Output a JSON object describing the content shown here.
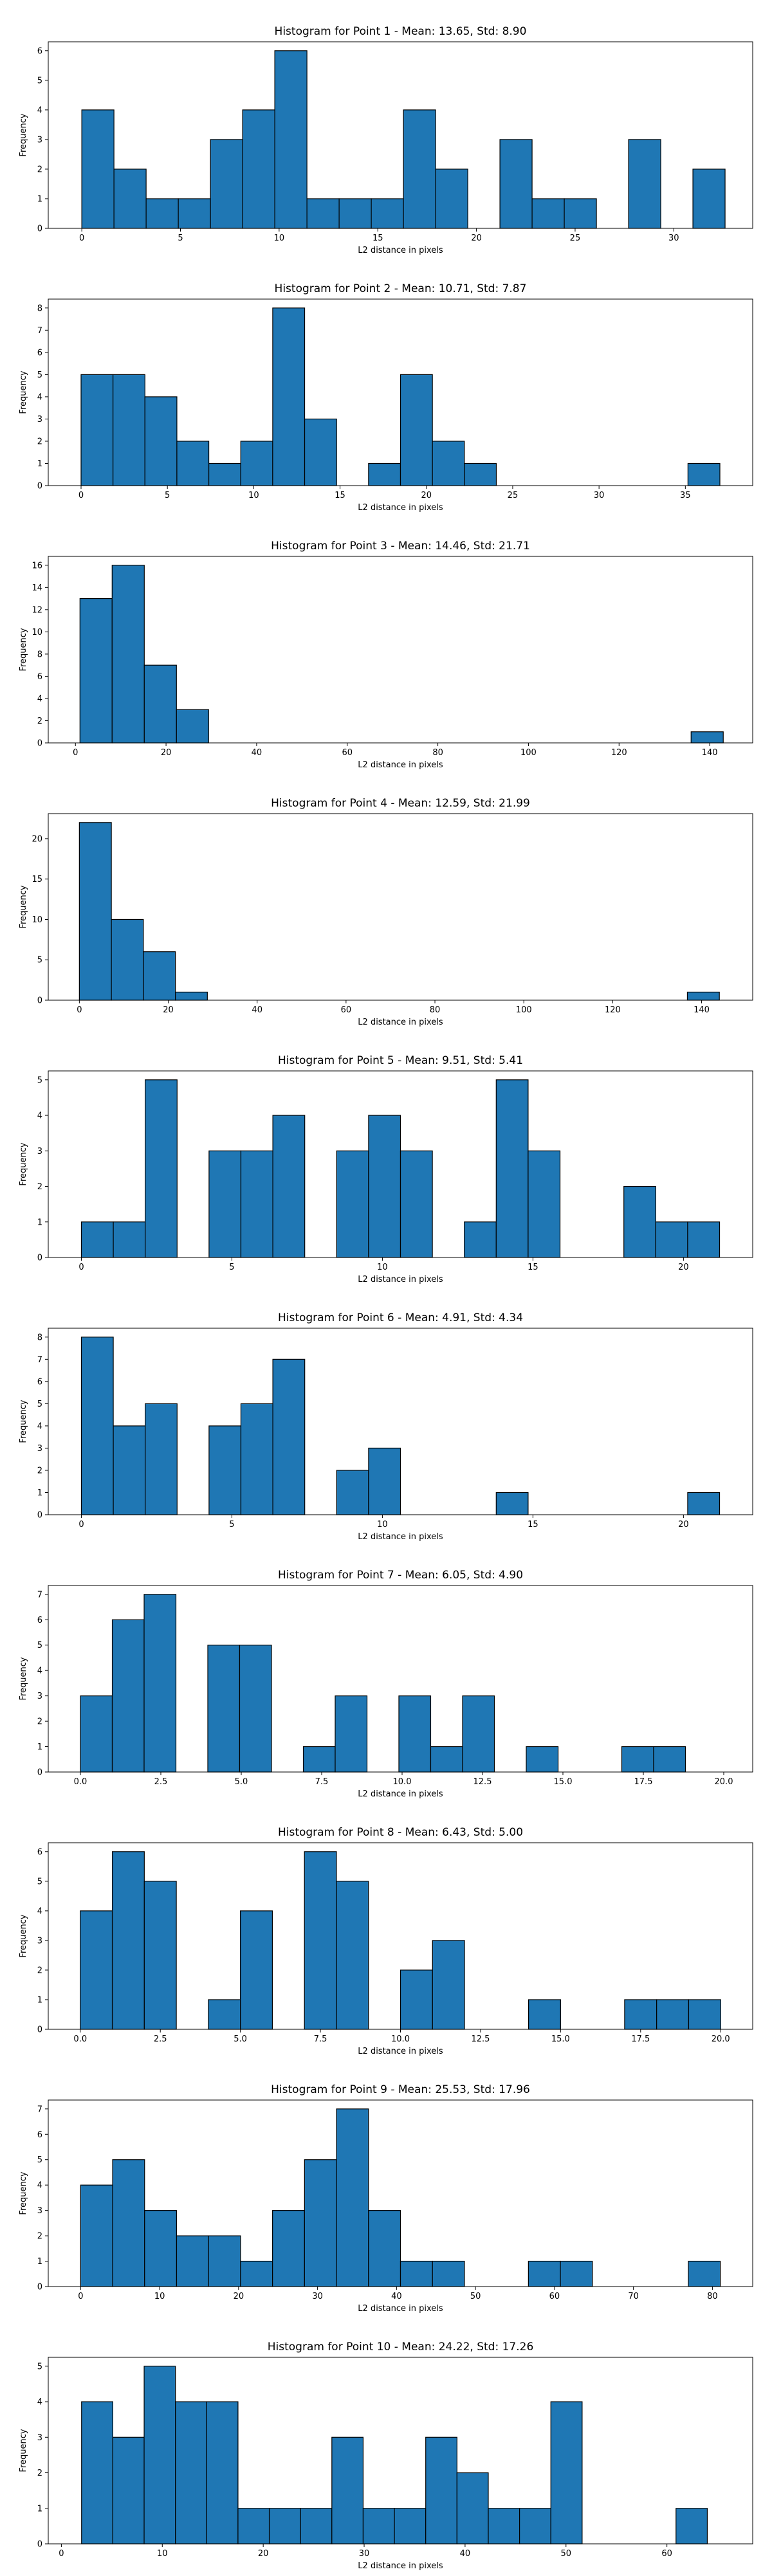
{
  "chart_data": [
    {
      "type": "bar",
      "title": "Histogram for Point 1 - Mean: 13.65, Std: 8.90",
      "xlabel": "L2 distance in pixels",
      "ylabel": "Frequency",
      "xlim": [
        -1.7,
        34.0
      ],
      "ylim": [
        0,
        6.3
      ],
      "xticks": [
        0,
        5,
        10,
        15,
        20,
        25,
        30
      ],
      "xtick_labels": [
        "0",
        "5",
        "10",
        "15",
        "20",
        "25",
        "30"
      ],
      "yticks": [
        0,
        1,
        2,
        3,
        4,
        5,
        6
      ],
      "bin_edges": [
        0.0,
        1.63,
        3.26,
        4.89,
        6.52,
        8.15,
        9.78,
        11.41,
        13.04,
        14.67,
        16.3,
        17.93,
        19.56,
        21.19,
        22.82,
        24.45,
        26.08,
        27.71,
        29.34,
        30.97,
        32.6
      ],
      "values": [
        4,
        2,
        1,
        1,
        3,
        4,
        6,
        1,
        1,
        1,
        4,
        2,
        0,
        3,
        1,
        1,
        0,
        3,
        0,
        2
      ]
    },
    {
      "type": "bar",
      "title": "Histogram for Point 2 - Mean: 10.71, Std: 7.87",
      "xlabel": "L2 distance in pixels",
      "ylabel": "Frequency",
      "xlim": [
        -1.9,
        38.9
      ],
      "ylim": [
        0,
        8.4
      ],
      "xticks": [
        0,
        5,
        10,
        15,
        20,
        25,
        30,
        35
      ],
      "xtick_labels": [
        "0",
        "5",
        "10",
        "15",
        "20",
        "25",
        "30",
        "35"
      ],
      "yticks": [
        0,
        1,
        2,
        3,
        4,
        5,
        6,
        7,
        8
      ],
      "bin_edges": [
        0.0,
        1.85,
        3.7,
        5.55,
        7.4,
        9.25,
        11.1,
        12.95,
        14.8,
        16.65,
        18.5,
        20.35,
        22.2,
        24.05,
        25.9,
        27.75,
        29.6,
        31.45,
        33.3,
        35.15,
        37.0
      ],
      "values": [
        5,
        5,
        4,
        2,
        1,
        2,
        8,
        3,
        0,
        1,
        5,
        2,
        1,
        0,
        0,
        0,
        0,
        0,
        0,
        1
      ]
    },
    {
      "type": "bar",
      "title": "Histogram for Point 3 - Mean: 14.46, Std: 21.71",
      "xlabel": "L2 distance in pixels",
      "ylabel": "Frequency",
      "xlim": [
        -6.0,
        149.5
      ],
      "ylim": [
        0,
        16.8
      ],
      "xticks": [
        0,
        20,
        40,
        60,
        80,
        100,
        120,
        140
      ],
      "xtick_labels": [
        "0",
        "20",
        "40",
        "60",
        "80",
        "100",
        "120",
        "140"
      ],
      "yticks": [
        0,
        2,
        4,
        6,
        8,
        10,
        12,
        14,
        16
      ],
      "bin_edges": [
        1.0,
        8.1,
        15.2,
        22.3,
        29.4,
        36.5,
        43.6,
        50.7,
        57.8,
        64.9,
        72.0,
        79.1,
        86.2,
        93.3,
        100.4,
        107.5,
        114.6,
        121.7,
        128.8,
        135.9,
        143.0
      ],
      "values": [
        13,
        16,
        7,
        3,
        0,
        0,
        0,
        0,
        0,
        0,
        0,
        0,
        0,
        0,
        0,
        0,
        0,
        0,
        0,
        1
      ]
    },
    {
      "type": "bar",
      "title": "Histogram for Point 4 - Mean: 12.59, Std: 21.99",
      "xlabel": "L2 distance in pixels",
      "ylabel": "Frequency",
      "xlim": [
        -7.0,
        151.5
      ],
      "ylim": [
        0,
        23.1
      ],
      "xticks": [
        0,
        20,
        40,
        60,
        80,
        100,
        120,
        140
      ],
      "xtick_labels": [
        "0",
        "20",
        "40",
        "60",
        "80",
        "100",
        "120",
        "140"
      ],
      "yticks": [
        0,
        5,
        10,
        15,
        20
      ],
      "bin_edges": [
        0.0,
        7.2,
        14.4,
        21.6,
        28.8,
        36.0,
        43.2,
        50.4,
        57.6,
        64.8,
        72.0,
        79.2,
        86.4,
        93.6,
        100.8,
        108.0,
        115.2,
        122.4,
        129.6,
        136.8,
        144.0
      ],
      "values": [
        22,
        10,
        6,
        1,
        0,
        0,
        0,
        0,
        0,
        0,
        0,
        0,
        0,
        0,
        0,
        0,
        0,
        0,
        0,
        1
      ]
    },
    {
      "type": "bar",
      "title": "Histogram for Point 5 - Mean: 9.51, Std: 5.41",
      "xlabel": "L2 distance in pixels",
      "ylabel": "Frequency",
      "xlim": [
        -1.1,
        22.3
      ],
      "ylim": [
        0,
        5.25
      ],
      "xticks": [
        0,
        5,
        10,
        15,
        20
      ],
      "xtick_labels": [
        "0",
        "5",
        "10",
        "15",
        "20"
      ],
      "yticks": [
        0,
        1,
        2,
        3,
        4,
        5
      ],
      "bin_edges": [
        0.0,
        1.06,
        2.12,
        3.18,
        4.24,
        5.3,
        6.36,
        7.42,
        8.48,
        9.54,
        10.6,
        11.66,
        12.72,
        13.78,
        14.84,
        15.9,
        16.96,
        18.02,
        19.08,
        20.14,
        21.2
      ],
      "values": [
        1,
        1,
        5,
        0,
        3,
        3,
        4,
        0,
        3,
        4,
        3,
        0,
        1,
        5,
        3,
        0,
        0,
        2,
        1,
        1
      ]
    },
    {
      "type": "bar",
      "title": "Histogram for Point 6 - Mean: 4.91, Std: 4.34",
      "xlabel": "L2 distance in pixels",
      "ylabel": "Frequency",
      "xlim": [
        -1.1,
        22.3
      ],
      "ylim": [
        0,
        8.4
      ],
      "xticks": [
        0,
        5,
        10,
        15,
        20
      ],
      "xtick_labels": [
        "0",
        "5",
        "10",
        "15",
        "20"
      ],
      "yticks": [
        0,
        1,
        2,
        3,
        4,
        5,
        6,
        7,
        8
      ],
      "bin_edges": [
        0.0,
        1.06,
        2.12,
        3.18,
        4.24,
        5.3,
        6.36,
        7.42,
        8.48,
        9.54,
        10.6,
        11.66,
        12.72,
        13.78,
        14.84,
        15.9,
        16.96,
        18.02,
        19.08,
        20.14,
        21.2
      ],
      "values": [
        8,
        4,
        5,
        0,
        4,
        5,
        7,
        0,
        2,
        3,
        0,
        0,
        0,
        1,
        0,
        0,
        0,
        0,
        0,
        1
      ]
    },
    {
      "type": "bar",
      "title": "Histogram for Point 7 - Mean: 6.05, Std: 4.90",
      "xlabel": "L2 distance in pixels",
      "ylabel": "Frequency",
      "xlim": [
        -1.0,
        20.9
      ],
      "ylim": [
        0,
        7.35
      ],
      "xticks": [
        0.0,
        2.5,
        5.0,
        7.5,
        10.0,
        12.5,
        15.0,
        17.5,
        20.0
      ],
      "xtick_labels": [
        "0.0",
        "2.5",
        "5.0",
        "7.5",
        "10.0",
        "12.5",
        "15.0",
        "17.5",
        "20.0"
      ],
      "yticks": [
        0,
        1,
        2,
        3,
        4,
        5,
        6,
        7
      ],
      "bin_edges": [
        0.0,
        0.99,
        1.98,
        2.97,
        3.96,
        4.95,
        5.94,
        6.93,
        7.92,
        8.91,
        9.9,
        10.89,
        11.88,
        12.87,
        13.86,
        14.85,
        15.84,
        16.83,
        17.82,
        18.81,
        19.8
      ],
      "values": [
        3,
        6,
        7,
        0,
        5,
        5,
        0,
        1,
        3,
        0,
        3,
        1,
        3,
        0,
        1,
        0,
        0,
        1,
        1,
        0
      ]
    },
    {
      "type": "bar",
      "title": "Histogram for Point 8 - Mean: 6.43, Std: 5.00",
      "xlabel": "L2 distance in pixels",
      "ylabel": "Frequency",
      "xlim": [
        -1.0,
        21.0
      ],
      "ylim": [
        0,
        6.3
      ],
      "xticks": [
        0.0,
        2.5,
        5.0,
        7.5,
        10.0,
        12.5,
        15.0,
        17.5,
        20.0
      ],
      "xtick_labels": [
        "0.0",
        "2.5",
        "5.0",
        "7.5",
        "10.0",
        "12.5",
        "15.0",
        "17.5",
        "20.0"
      ],
      "yticks": [
        0,
        1,
        2,
        3,
        4,
        5,
        6
      ],
      "bin_edges": [
        0.0,
        1.0,
        2.0,
        3.0,
        4.0,
        5.0,
        6.0,
        7.0,
        8.0,
        9.0,
        10.0,
        11.0,
        12.0,
        13.0,
        14.0,
        15.0,
        16.0,
        17.0,
        18.0,
        19.0,
        20.0
      ],
      "values": [
        4,
        6,
        5,
        0,
        1,
        4,
        0,
        6,
        5,
        0,
        2,
        3,
        0,
        0,
        1,
        0,
        0,
        1,
        1,
        1
      ]
    },
    {
      "type": "bar",
      "title": "Histogram for Point 9 - Mean: 25.53, Std: 17.96",
      "xlabel": "L2 distance in pixels",
      "ylabel": "Frequency",
      "xlim": [
        -4.1,
        85.1
      ],
      "ylim": [
        0,
        7.35
      ],
      "xticks": [
        0,
        10,
        20,
        30,
        40,
        50,
        60,
        70,
        80
      ],
      "xtick_labels": [
        "0",
        "10",
        "20",
        "30",
        "40",
        "50",
        "60",
        "70",
        "80"
      ],
      "yticks": [
        0,
        1,
        2,
        3,
        4,
        5,
        6,
        7
      ],
      "bin_edges": [
        0.0,
        4.05,
        8.1,
        12.15,
        16.2,
        20.25,
        24.3,
        28.35,
        32.4,
        36.45,
        40.5,
        44.55,
        48.6,
        52.65,
        56.7,
        60.75,
        64.8,
        68.85,
        72.9,
        76.95,
        81.0
      ],
      "values": [
        4,
        5,
        3,
        2,
        2,
        1,
        3,
        5,
        7,
        3,
        1,
        1,
        0,
        0,
        1,
        1,
        0,
        0,
        0,
        1
      ]
    },
    {
      "type": "bar",
      "title": "Histogram for Point 10 - Mean: 24.22, Std: 17.26",
      "xlabel": "L2 distance in pixels",
      "ylabel": "Frequency",
      "xlim": [
        -1.3,
        68.5
      ],
      "ylim": [
        0,
        5.25
      ],
      "xticks": [
        0,
        10,
        20,
        30,
        40,
        50,
        60
      ],
      "xtick_labels": [
        "0",
        "10",
        "20",
        "30",
        "40",
        "50",
        "60"
      ],
      "yticks": [
        0,
        1,
        2,
        3,
        4,
        5
      ],
      "bin_edges": [
        2.0,
        5.1,
        8.2,
        11.3,
        14.4,
        17.5,
        20.6,
        23.7,
        26.8,
        29.9,
        33.0,
        36.1,
        39.2,
        42.3,
        45.4,
        48.5,
        51.6,
        54.7,
        57.8,
        60.9,
        64.0
      ],
      "values": [
        4,
        3,
        5,
        4,
        4,
        1,
        1,
        1,
        3,
        1,
        1,
        3,
        2,
        1,
        1,
        4,
        0,
        0,
        0,
        1
      ]
    }
  ],
  "colors": {
    "bar": "#1f77b4",
    "edge": "#000000",
    "axis": "#000000"
  }
}
